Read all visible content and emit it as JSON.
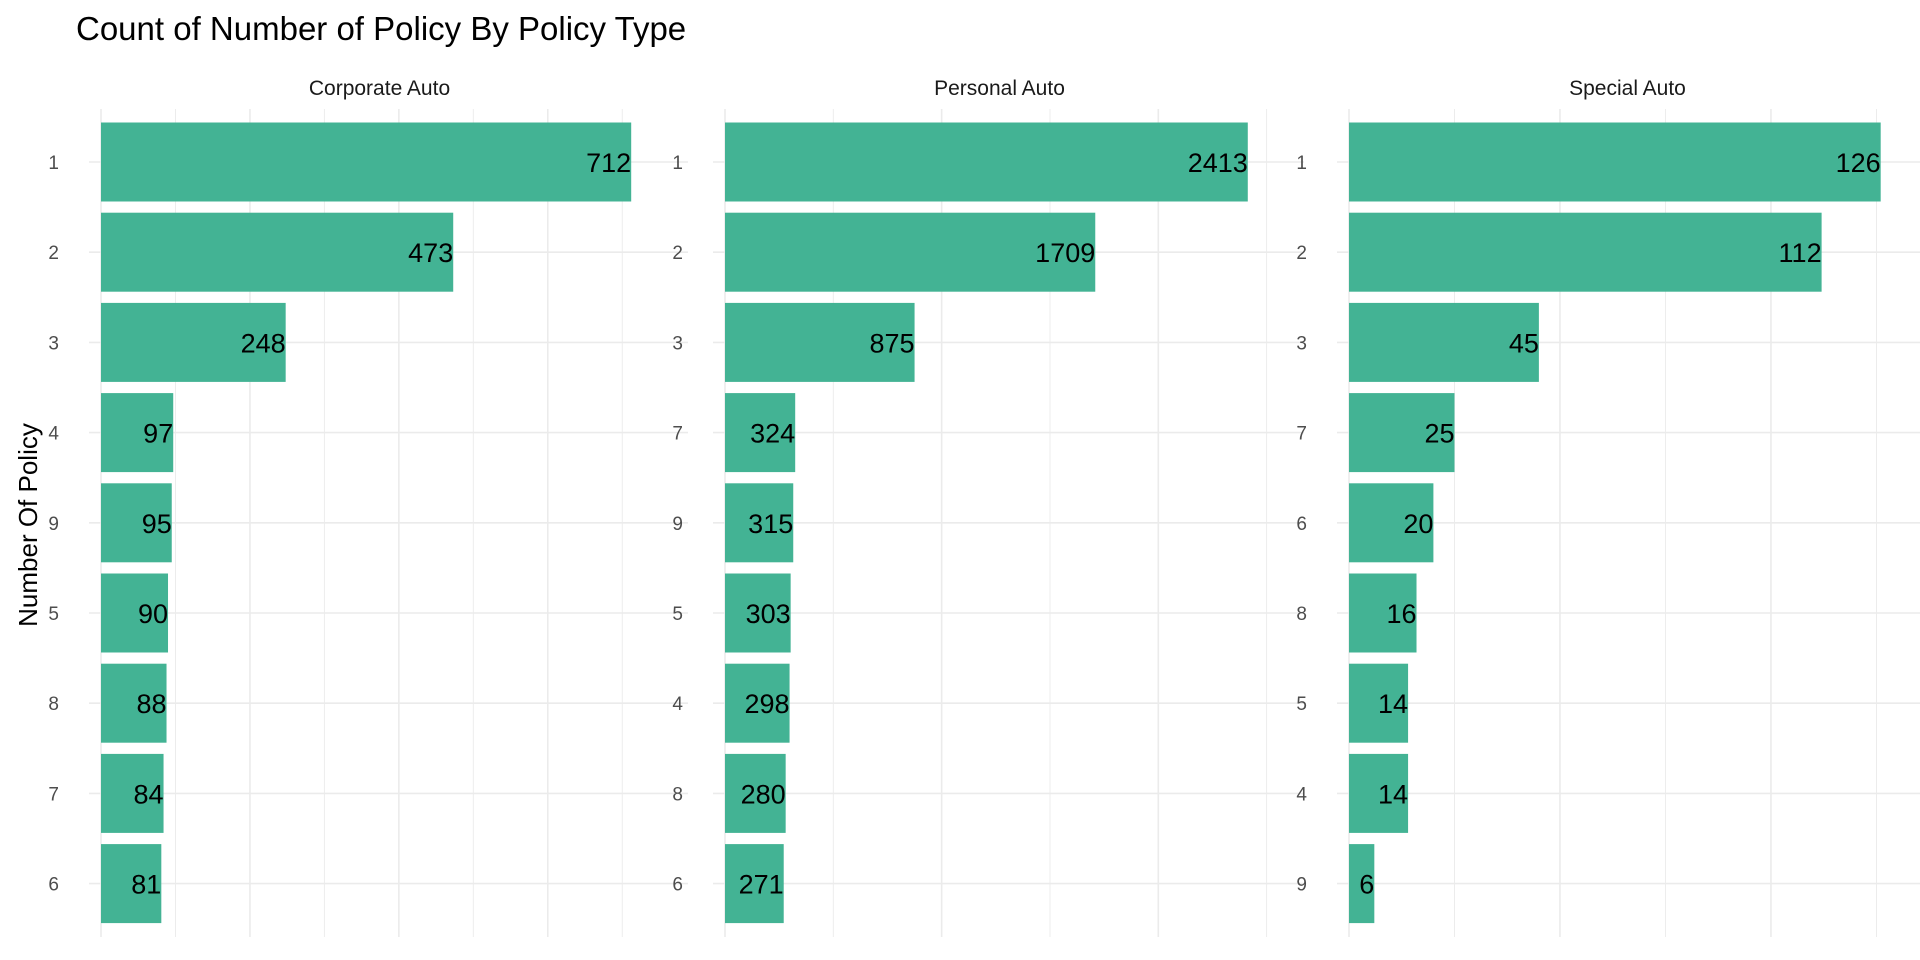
{
  "chart_data": {
    "type": "bar",
    "orientation": "horizontal",
    "faceted": true,
    "title": "Count of Number of Policy By Policy Type",
    "ylabel": "Number Of Policy",
    "xlabel": "",
    "bar_color": "#43b394",
    "grid": true,
    "legend": "none",
    "scales": "free",
    "panels": [
      {
        "name": "Corporate Auto",
        "categories": [
          "1",
          "2",
          "3",
          "4",
          "9",
          "5",
          "8",
          "7",
          "6"
        ],
        "values": [
          712,
          473,
          248,
          97,
          95,
          90,
          88,
          84,
          81
        ],
        "xlim": [
          0,
          748
        ],
        "major_step": 200
      },
      {
        "name": "Personal Auto",
        "categories": [
          "1",
          "2",
          "3",
          "7",
          "9",
          "5",
          "4",
          "8",
          "6"
        ],
        "values": [
          2413,
          1709,
          875,
          324,
          315,
          303,
          298,
          280,
          271
        ],
        "xlim": [
          0,
          2534
        ],
        "major_step": 1000
      },
      {
        "name": "Special Auto",
        "categories": [
          "1",
          "2",
          "3",
          "7",
          "6",
          "8",
          "5",
          "4",
          "9"
        ],
        "values": [
          126,
          112,
          45,
          25,
          20,
          16,
          14,
          14,
          6
        ],
        "xlim": [
          0,
          132
        ],
        "major_step": 50
      }
    ]
  }
}
